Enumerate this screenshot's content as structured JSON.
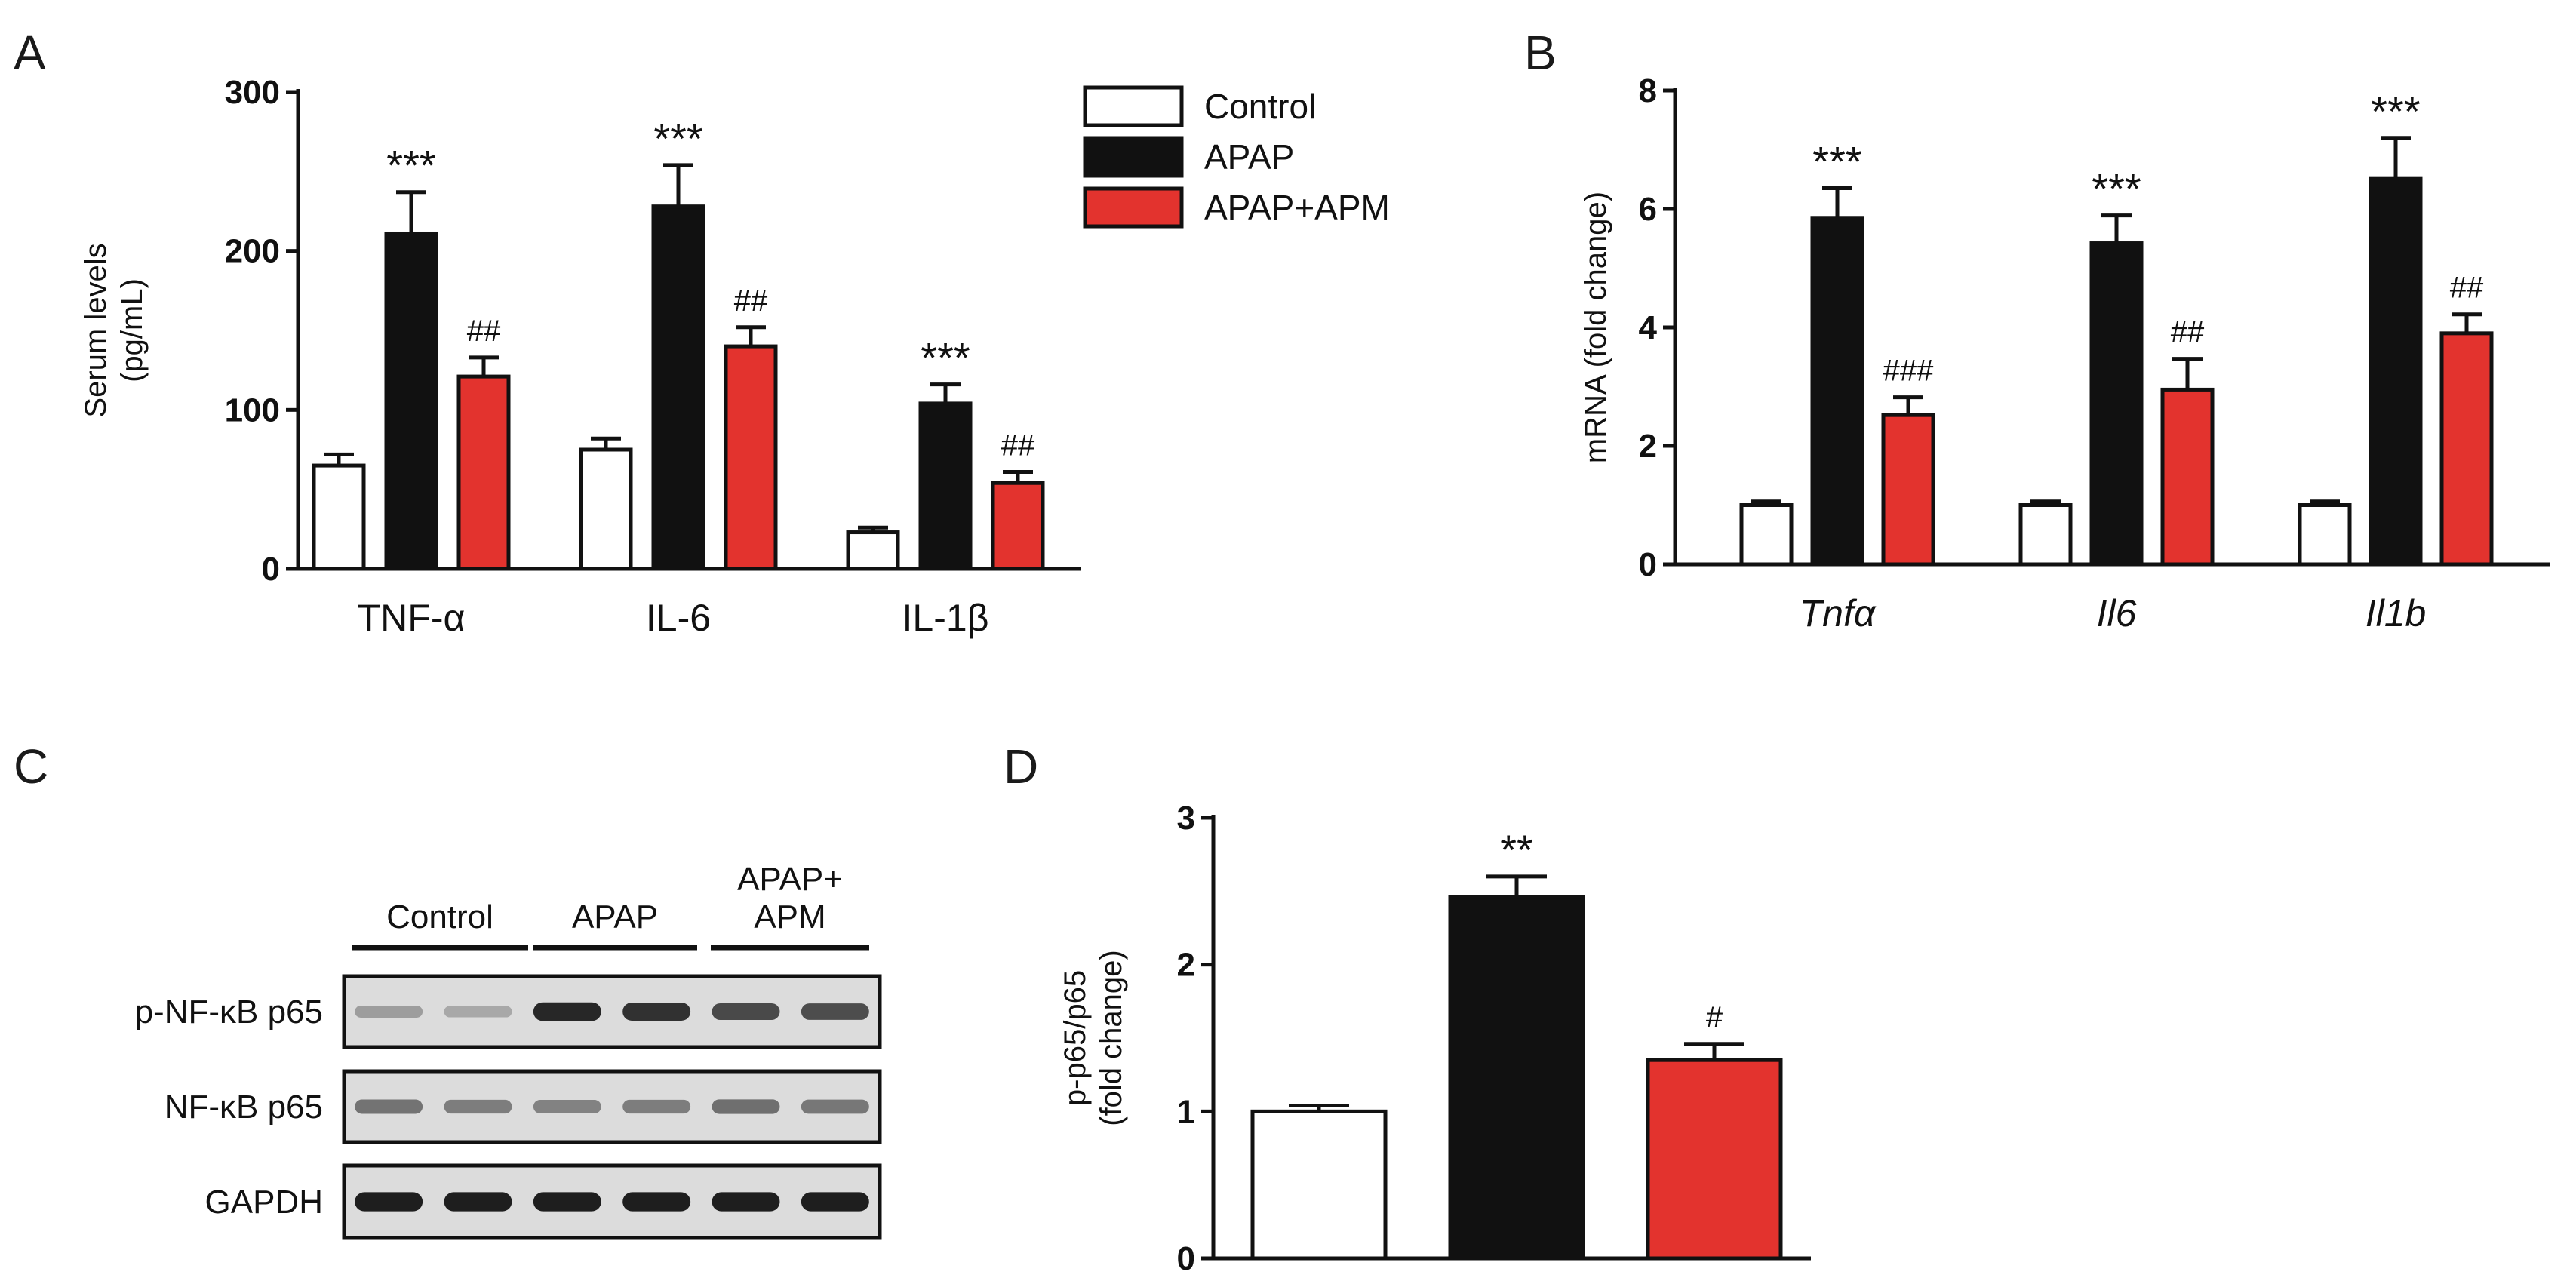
{
  "colors": {
    "control": "#ffffff",
    "apap": "#111111",
    "apap_apm": "#e3332e",
    "stroke": "#111111"
  },
  "panels": {
    "a": "A",
    "b": "B",
    "c": "C",
    "d": "D"
  },
  "legend": [
    "Control",
    "APAP",
    "APAP+APM"
  ],
  "chart_data": [
    {
      "type": "bar",
      "panel": "A",
      "ylabel_lines": [
        "Serum levels",
        "(pg/mL)"
      ],
      "ylim": [
        0,
        300
      ],
      "yticks": [
        0,
        100,
        200,
        300
      ],
      "categories": [
        "TNF-α",
        "IL-6",
        "IL-1β"
      ],
      "italic_categories": false,
      "series": [
        {
          "name": "Control",
          "values": [
            65,
            75,
            23
          ],
          "errors": [
            7,
            7,
            3
          ]
        },
        {
          "name": "APAP",
          "values": [
            211,
            228,
            104
          ],
          "errors": [
            26,
            26,
            12
          ]
        },
        {
          "name": "APAP+APM",
          "values": [
            121,
            140,
            54
          ],
          "errors": [
            12,
            12,
            7
          ]
        }
      ],
      "annotations": [
        [
          "",
          "***",
          "##"
        ],
        [
          "",
          "***",
          "##"
        ],
        [
          "",
          "***",
          "##"
        ]
      ],
      "legend": "top-right"
    },
    {
      "type": "bar",
      "panel": "B",
      "ylabel_lines": [
        "mRNA (fold change)"
      ],
      "ylim": [
        0,
        8
      ],
      "yticks": [
        0,
        2,
        4,
        6,
        8
      ],
      "categories": [
        "Tnfα",
        "Il6",
        "Il1b"
      ],
      "italic_categories": true,
      "series": [
        {
          "name": "Control",
          "values": [
            1.0,
            1.0,
            1.0
          ],
          "errors": [
            0.06,
            0.06,
            0.06
          ]
        },
        {
          "name": "APAP",
          "values": [
            5.85,
            5.42,
            6.52
          ],
          "errors": [
            0.5,
            0.47,
            0.68
          ]
        },
        {
          "name": "APAP+APM",
          "values": [
            2.52,
            2.95,
            3.9
          ],
          "errors": [
            0.3,
            0.52,
            0.32
          ]
        }
      ],
      "annotations": [
        [
          "",
          "***",
          "###"
        ],
        [
          "",
          "***",
          "##"
        ],
        [
          "",
          "***",
          "##"
        ]
      ]
    },
    {
      "type": "bar",
      "panel": "D",
      "ylabel_lines": [
        "p-p65/p65",
        "(fold change)"
      ],
      "ylim": [
        0,
        3
      ],
      "yticks": [
        0,
        1,
        2,
        3
      ],
      "categories": [
        ""
      ],
      "italic_categories": false,
      "series": [
        {
          "name": "Control",
          "values": [
            1.0
          ],
          "errors": [
            0.04
          ]
        },
        {
          "name": "APAP",
          "values": [
            2.46
          ],
          "errors": [
            0.14
          ]
        },
        {
          "name": "APAP+APM",
          "values": [
            1.35
          ],
          "errors": [
            0.11
          ]
        }
      ],
      "annotations": [
        [
          "",
          "**",
          "#"
        ]
      ]
    }
  ],
  "blot": {
    "groups": [
      {
        "lines": [
          "Control"
        ]
      },
      {
        "lines": [
          "APAP"
        ]
      },
      {
        "lines": [
          "APAP+",
          "APM"
        ]
      }
    ],
    "rows": [
      {
        "label": "p-NF-κB p65",
        "intensities": [
          0.28,
          0.22,
          0.9,
          0.85,
          0.72,
          0.7
        ]
      },
      {
        "label": "NF-κB p65",
        "intensities": [
          0.5,
          0.45,
          0.42,
          0.45,
          0.52,
          0.48
        ]
      },
      {
        "label": "GAPDH",
        "intensities": [
          0.95,
          0.95,
          0.95,
          0.95,
          0.95,
          0.95
        ]
      }
    ]
  }
}
